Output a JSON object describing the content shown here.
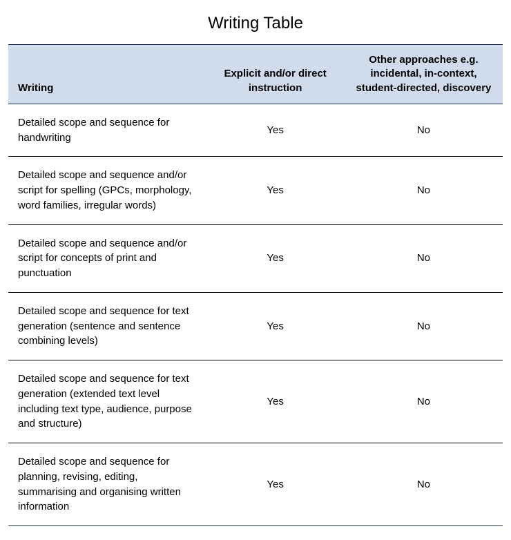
{
  "title": "Writing Table",
  "table": {
    "background_color": "#ffffff",
    "header_background": "#d0dcec",
    "border_color": "#1a2a4a",
    "row_border_color": "#000000",
    "columns": [
      {
        "key": "writing",
        "label": "Writing",
        "align": "left"
      },
      {
        "key": "explicit",
        "label": "Explicit and/or direct instruction",
        "align": "center"
      },
      {
        "key": "other",
        "label": "Other approaches e.g. incidental, in-context, student-directed, discovery",
        "align": "center"
      }
    ],
    "rows": [
      {
        "writing": "Detailed scope and sequence for handwriting",
        "explicit": "Yes",
        "other": "No"
      },
      {
        "writing": "Detailed scope and sequence and/or script for spelling (GPCs, morphology, word families, irregular words)",
        "explicit": "Yes",
        "other": "No"
      },
      {
        "writing": "Detailed scope and sequence and/or script for concepts of print and punctuation",
        "explicit": "Yes",
        "other": "No"
      },
      {
        "writing": "Detailed scope and sequence for text generation (sentence and sentence combining levels)",
        "explicit": "Yes",
        "other": "No"
      },
      {
        "writing": "Detailed scope and sequence for text generation (extended text level including text type, audience, purpose and structure)",
        "explicit": "Yes",
        "other": "No"
      },
      {
        "writing": "Detailed scope and sequence for planning, revising, editing, summarising and organising written information",
        "explicit": "Yes",
        "other": "No"
      }
    ]
  }
}
